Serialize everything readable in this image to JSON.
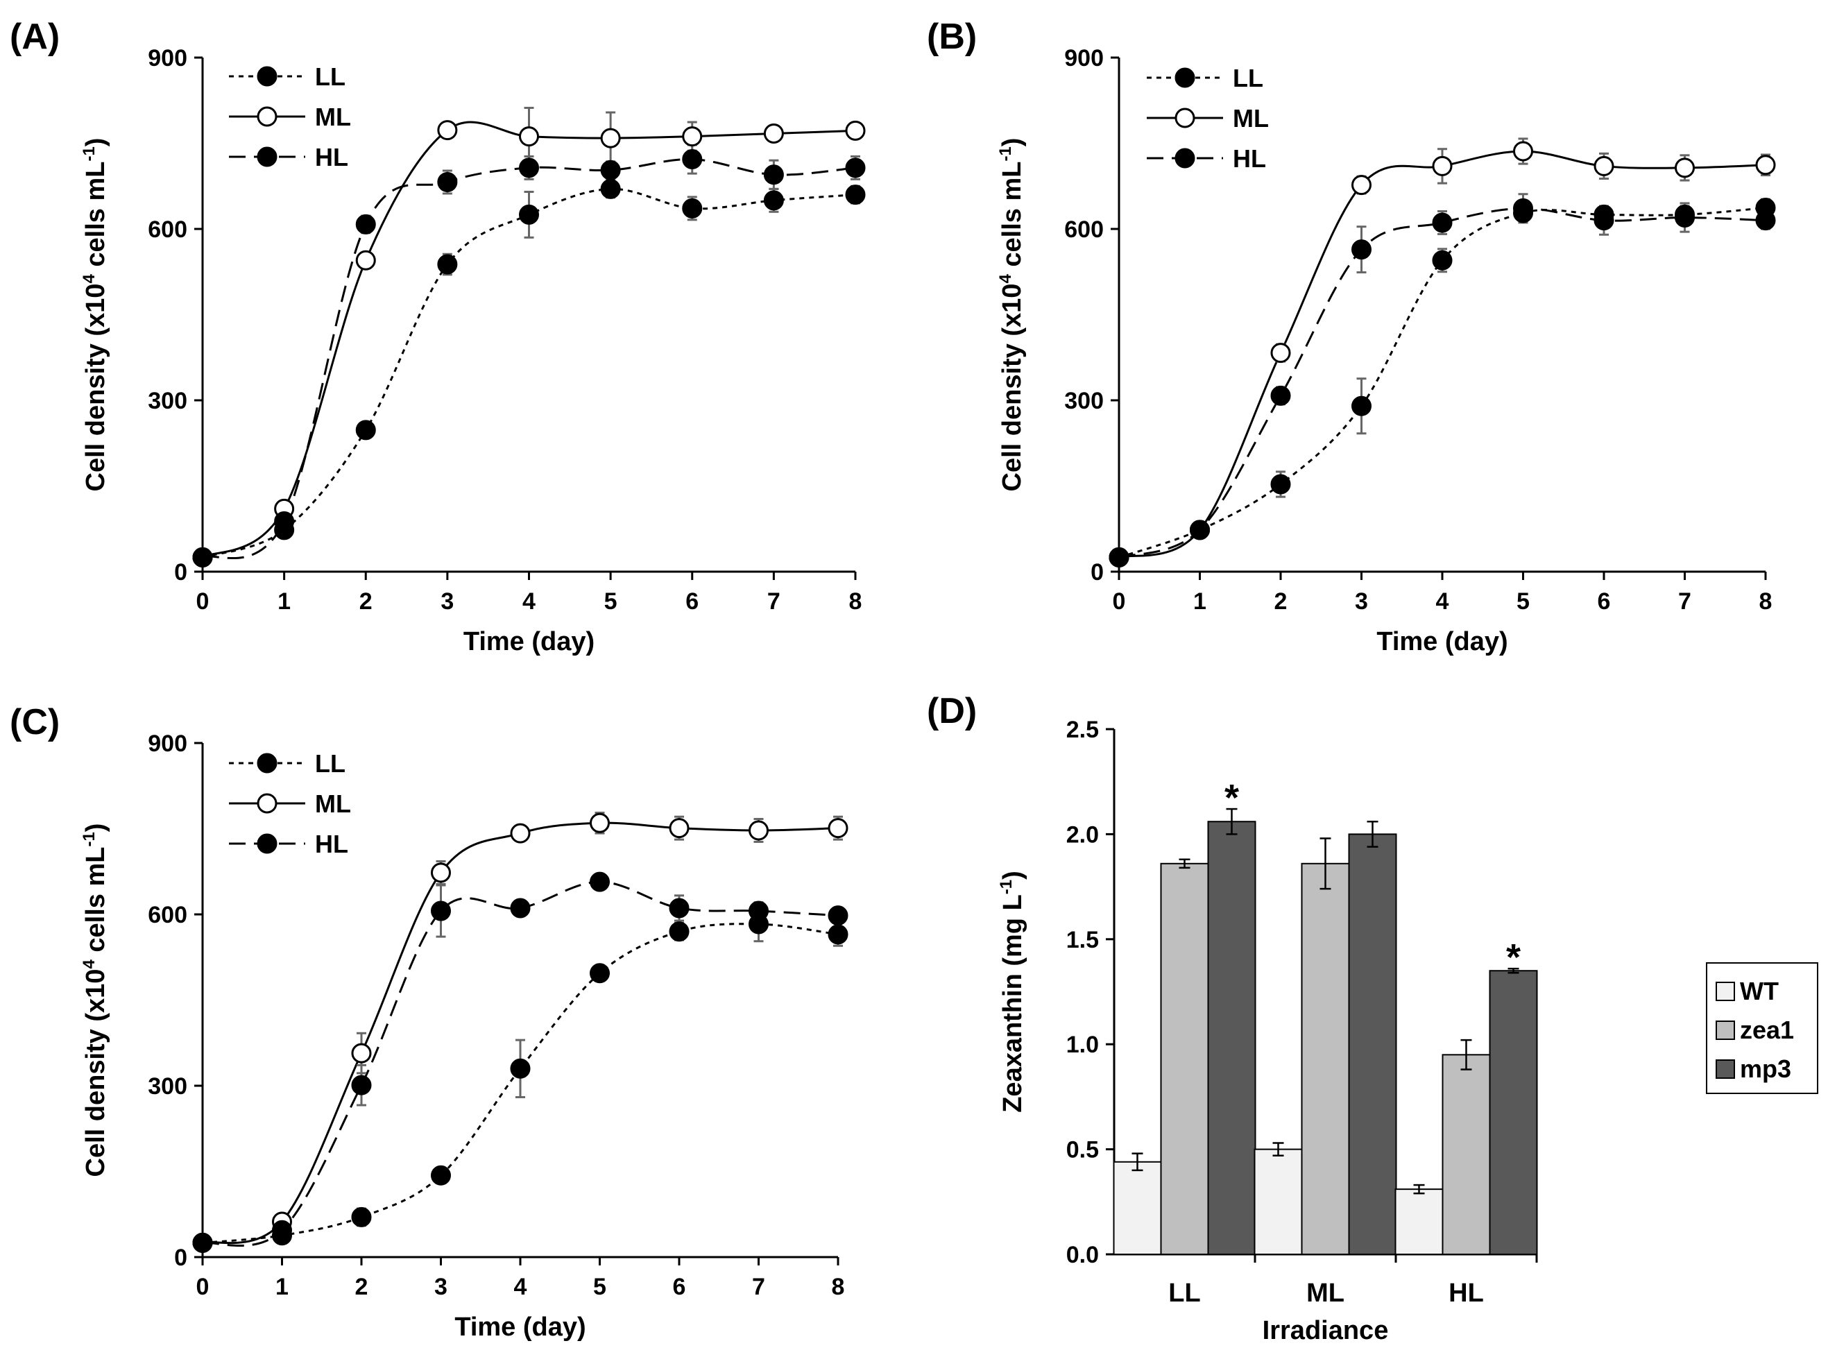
{
  "chart_data": [
    {
      "panel": "(A)",
      "type": "line",
      "xlabel": "Time (day)",
      "ylabel_main": "Cell density (x10",
      "ylabel_sup1": "4",
      "ylabel_mid": " cells mL",
      "ylabel_sup2": "-1",
      "ylabel_end": ")",
      "x": [
        0,
        1,
        2,
        3,
        4,
        5,
        6,
        7,
        8
      ],
      "xlim": [
        0,
        8
      ],
      "ylim": [
        0,
        900
      ],
      "yticks": [
        0,
        300,
        600,
        900
      ],
      "series": [
        {
          "name": "LL",
          "style": "dotted",
          "marker": "filled",
          "values": [
            25,
            73,
            248,
            538,
            625,
            670,
            636,
            650,
            660
          ],
          "errors": [
            5,
            8,
            10,
            18,
            40,
            15,
            20,
            20,
            15
          ]
        },
        {
          "name": "ML",
          "style": "solid",
          "marker": "open",
          "values": [
            25,
            110,
            545,
            773,
            762,
            759,
            762,
            767,
            772
          ],
          "errors": [
            5,
            8,
            10,
            8,
            50,
            45,
            25,
            10,
            8
          ]
        },
        {
          "name": "HL",
          "style": "dashed",
          "marker": "filled",
          "values": [
            25,
            88,
            608,
            682,
            707,
            703,
            722,
            695,
            707
          ],
          "errors": [
            5,
            8,
            15,
            20,
            20,
            15,
            25,
            25,
            20
          ]
        }
      ]
    },
    {
      "panel": "(B)",
      "type": "line",
      "xlabel": "Time (day)",
      "ylabel_main": "Cell density (x10",
      "ylabel_sup1": "4",
      "ylabel_mid": " cells mL",
      "ylabel_sup2": "-1",
      "ylabel_end": ")",
      "x": [
        0,
        1,
        2,
        3,
        4,
        5,
        6,
        7,
        8
      ],
      "xlim": [
        0,
        8
      ],
      "ylim": [
        0,
        900
      ],
      "yticks": [
        0,
        300,
        600,
        900
      ],
      "series": [
        {
          "name": "LL",
          "style": "dotted",
          "marker": "filled",
          "values": [
            25,
            73,
            153,
            290,
            545,
            628,
            625,
            625,
            637
          ],
          "errors": [
            5,
            6,
            22,
            48,
            20,
            15,
            15,
            15,
            15
          ]
        },
        {
          "name": "ML",
          "style": "solid",
          "marker": "open",
          "values": [
            25,
            73,
            383,
            677,
            710,
            736,
            710,
            707,
            712
          ],
          "errors": [
            5,
            6,
            15,
            15,
            30,
            22,
            22,
            22,
            18
          ]
        },
        {
          "name": "HL",
          "style": "dashed",
          "marker": "filled",
          "values": [
            25,
            73,
            308,
            564,
            611,
            636,
            615,
            620,
            615
          ],
          "errors": [
            5,
            6,
            15,
            40,
            20,
            25,
            25,
            25,
            15
          ]
        }
      ]
    },
    {
      "panel": "(C)",
      "type": "line",
      "xlabel": "Time (day)",
      "ylabel_main": "Cell density (x10",
      "ylabel_sup1": "4",
      "ylabel_mid": " cells mL",
      "ylabel_sup2": "-1",
      "ylabel_end": ")",
      "x": [
        0,
        1,
        2,
        3,
        4,
        5,
        6,
        7,
        8
      ],
      "xlim": [
        0,
        8
      ],
      "ylim": [
        0,
        900
      ],
      "yticks": [
        0,
        300,
        600,
        900
      ],
      "series": [
        {
          "name": "LL",
          "style": "dotted",
          "marker": "filled",
          "values": [
            25,
            38,
            70,
            143,
            330,
            497,
            570,
            583,
            565
          ],
          "errors": [
            5,
            5,
            15,
            10,
            50,
            10,
            15,
            30,
            20
          ]
        },
        {
          "name": "ML",
          "style": "solid",
          "marker": "open",
          "values": [
            25,
            62,
            357,
            673,
            742,
            760,
            751,
            747,
            751
          ],
          "errors": [
            5,
            6,
            35,
            20,
            8,
            18,
            20,
            20,
            20
          ]
        },
        {
          "name": "HL",
          "style": "dashed",
          "marker": "filled",
          "values": [
            25,
            47,
            301,
            606,
            611,
            657,
            611,
            606,
            598
          ],
          "errors": [
            5,
            6,
            35,
            45,
            12,
            12,
            22,
            15,
            12
          ]
        }
      ]
    },
    {
      "panel": "(D)",
      "type": "bar",
      "xlabel": "Irradiance",
      "ylabel": "Zeaxanthin (mg L",
      "ylabel_sup": "-1",
      "ylabel_end": ")",
      "categories": [
        "LL",
        "ML",
        "HL"
      ],
      "ylim": [
        0,
        2.5
      ],
      "yticks": [
        "0.0",
        "0.5",
        "1.0",
        "1.5",
        "2.0",
        "2.5"
      ],
      "series": [
        {
          "name": "WT",
          "color": "#f2f2f2",
          "values": [
            0.44,
            0.5,
            0.31
          ],
          "errors": [
            0.04,
            0.03,
            0.02
          ]
        },
        {
          "name": "zea1",
          "color": "#bfbfbf",
          "values": [
            1.86,
            1.86,
            0.95
          ],
          "errors": [
            0.02,
            0.12,
            0.07
          ]
        },
        {
          "name": "mp3",
          "color": "#595959",
          "values": [
            2.06,
            2.0,
            1.35
          ],
          "errors": [
            0.06,
            0.06,
            0.01
          ]
        }
      ],
      "annotations": [
        {
          "text": "*",
          "category": "LL",
          "series": "mp3"
        },
        {
          "text": "*",
          "category": "HL",
          "series": "mp3"
        }
      ]
    }
  ]
}
